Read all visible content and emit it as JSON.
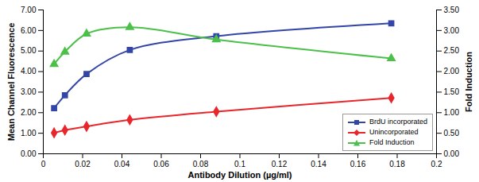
{
  "chart_data": {
    "type": "line",
    "x_label": "Antibody Dilution (µg/ml)",
    "y_label": "Mean Channel Fluorescence",
    "y2_label": "Fold Induction",
    "x": [
      0.0055,
      0.011,
      0.022,
      0.044,
      0.088,
      0.177
    ],
    "series": [
      {
        "name": "BrdU incorporated",
        "color": "#3346a8",
        "marker": "square",
        "values": [
          2.22,
          2.85,
          3.88,
          5.05,
          5.72,
          6.35
        ]
      },
      {
        "name": "Unincorporated",
        "color": "#e8262b",
        "marker": "diamond",
        "values": [
          1.02,
          1.15,
          1.33,
          1.65,
          2.05,
          2.72
        ]
      },
      {
        "name": "Fold Induction",
        "color": "#4cc04a",
        "marker": "triangle",
        "axis": "y2",
        "values": [
          2.18,
          2.48,
          2.92,
          3.08,
          2.78,
          2.32
        ]
      }
    ],
    "xlim": [
      0,
      0.2
    ],
    "xticks": [
      0,
      0.02,
      0.04,
      0.06,
      0.08,
      0.1,
      0.12,
      0.14,
      0.16,
      0.18,
      0.2
    ],
    "ylim": [
      0,
      7
    ],
    "yticks": [
      {
        "value": 0,
        "label": "0.00"
      },
      {
        "value": 1,
        "label": "1.00"
      },
      {
        "value": 2,
        "label": "2.00"
      },
      {
        "value": 3,
        "label": "3.00"
      },
      {
        "value": 4,
        "label": "4.00"
      },
      {
        "value": 5,
        "label": "5.00"
      },
      {
        "value": 6,
        "label": "6.00"
      },
      {
        "value": 7,
        "label": "7.00"
      }
    ],
    "y2lim": [
      0,
      3.5
    ],
    "y2ticks": [
      {
        "value": 0,
        "label": "0.00"
      },
      {
        "value": 0.5,
        "label": "0.50"
      },
      {
        "value": 1,
        "label": "1.00"
      },
      {
        "value": 1.5,
        "label": "1.50"
      },
      {
        "value": 2,
        "label": "2.00"
      },
      {
        "value": 2.5,
        "label": "2.50"
      },
      {
        "value": 3,
        "label": "3.00"
      },
      {
        "value": 3.5,
        "label": "3.50"
      }
    ],
    "grid": false,
    "legend": "lower right"
  }
}
